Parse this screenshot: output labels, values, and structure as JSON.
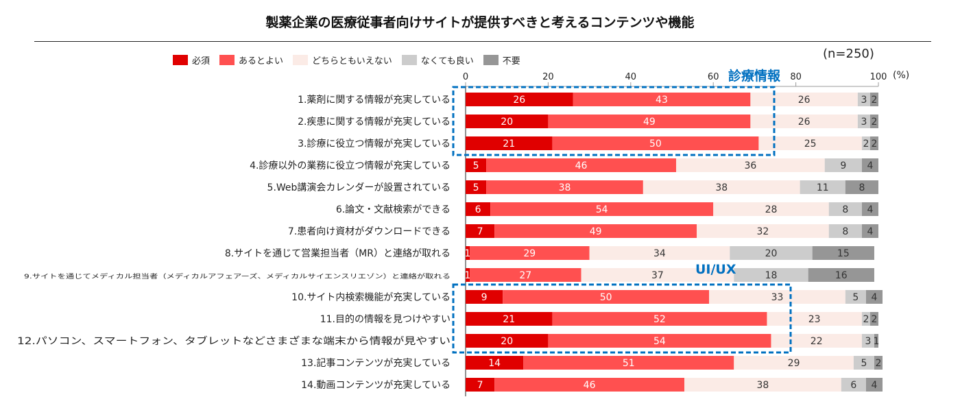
{
  "chart_data": {
    "type": "bar",
    "orientation": "horizontal",
    "stacked": true,
    "title": "製薬企業の医療従事者向けサイトが提供すべきと考えるコンテンツや機能",
    "sample_size": "(n=250)",
    "unit": "(%)",
    "xlim": [
      0,
      100
    ],
    "xticks": [
      "0",
      "20",
      "40",
      "60",
      "80",
      "100"
    ],
    "legend_position": "top-left",
    "series": [
      {
        "name": "必須",
        "color": "#e00000",
        "values": [
          26,
          20,
          21,
          5,
          5,
          6,
          7,
          1,
          1,
          9,
          21,
          20,
          14,
          7
        ]
      },
      {
        "name": "あるとよい",
        "color": "#ff5050",
        "values": [
          43,
          49,
          50,
          46,
          38,
          54,
          49,
          29,
          27,
          50,
          52,
          54,
          51,
          46
        ]
      },
      {
        "name": "どちらともいえない",
        "color": "#fbebe6",
        "values": [
          26,
          26,
          25,
          36,
          38,
          28,
          32,
          34,
          37,
          33,
          23,
          22,
          29,
          38
        ]
      },
      {
        "name": "なくても良い",
        "color": "#cccccc",
        "values": [
          3,
          3,
          2,
          9,
          11,
          8,
          8,
          20,
          18,
          5,
          2,
          3,
          5,
          6
        ]
      },
      {
        "name": "不要",
        "color": "#969696",
        "values": [
          2,
          2,
          2,
          4,
          8,
          4,
          4,
          15,
          16,
          4,
          2,
          1,
          2,
          4
        ]
      }
    ],
    "categories": [
      "1.薬剤に関する情報が充実している",
      "2.疾患に関する情報が充実している",
      "3.診療に役立つ情報が充実している",
      "4.診療以外の業務に役立つ情報が充実している",
      "5.Web講演会カレンダーが設置されている",
      "6.論文・文献検索ができる",
      "7.患者向け資材がダウンロードできる",
      "8.サイトを通じて営業担当者（MR）と連絡が取れる",
      "9.サイトを通じてメディカル担当者（メディカルアフェアーズ、メディカルサイエンスリエゾン）と連絡が取れる",
      "10.サイト内検索機能が充実している",
      "11.目的の情報を見つけやすい",
      "12.パソコン、スマートフォン、タブレットなどさまざまな端末から情報が見やすい",
      "13.記事コンテンツが充実している",
      "14.動画コンテンツが充実している"
    ],
    "annotations": [
      {
        "label": "診療情報",
        "color": "#0070c0",
        "rows": [
          1,
          3
        ]
      },
      {
        "label": "UI/UX",
        "color": "#0070c0",
        "rows": [
          10,
          12
        ]
      }
    ]
  }
}
